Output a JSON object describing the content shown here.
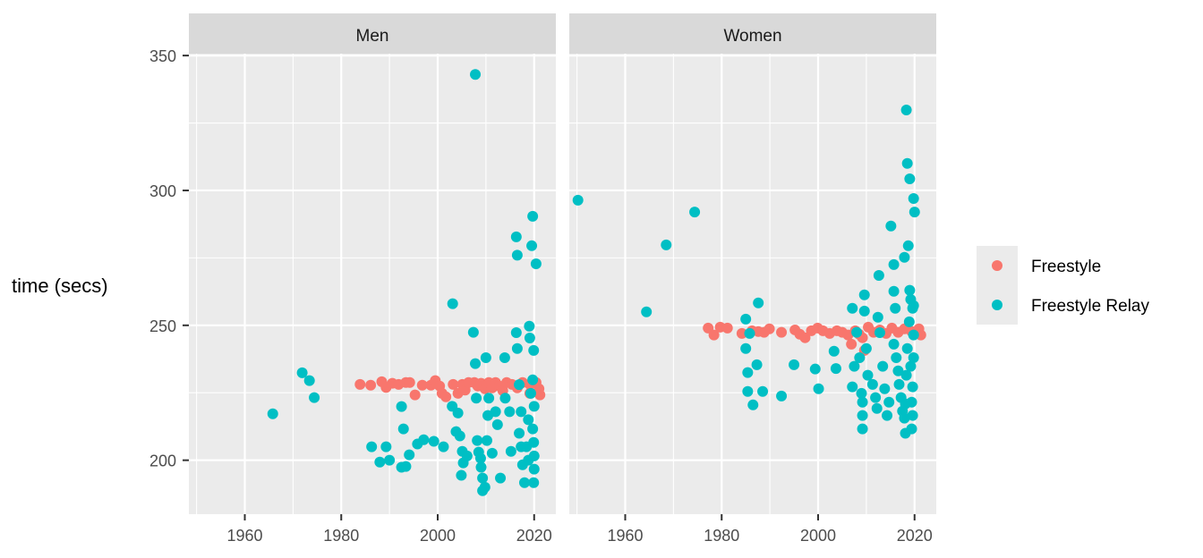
{
  "chart_data": {
    "type": "scatter",
    "title": "",
    "xlabel": "",
    "ylabel": "time (secs)",
    "xlim": [
      1948.4,
      2024.5
    ],
    "ylim": [
      180,
      350.7
    ],
    "x_ticks": [
      1960,
      1980,
      2000,
      2020
    ],
    "y_ticks": [
      200,
      250,
      300,
      350
    ],
    "grid": true,
    "legend_placement": "right",
    "colors": {
      "Freestyle": "#F8766D",
      "Freestyle Relay": "#00BFC4",
      "panel_bg": "#EBEBEB",
      "strip_bg": "#D9D9D9"
    },
    "legend": [
      {
        "label": "Freestyle",
        "color": "#F8766D"
      },
      {
        "label": "Freestyle Relay",
        "color": "#00BFC4"
      }
    ],
    "facets": [
      {
        "label": "Men",
        "series": [
          {
            "name": "Freestyle",
            "points": [
              [
                1983.9,
                228.1
              ],
              [
                1986.1,
                227.8
              ],
              [
                1988.4,
                229.1
              ],
              [
                1989.3,
                227
              ],
              [
                1990.6,
                228.5
              ],
              [
                1991.9,
                228.1
              ],
              [
                1993.4,
                228.8
              ],
              [
                1994.2,
                228.8
              ],
              [
                1995.3,
                224.2
              ],
              [
                1996.8,
                227.8
              ],
              [
                1998.6,
                227.8
              ],
              [
                1999.5,
                229.5
              ],
              [
                2000.4,
                227.5
              ],
              [
                2000.9,
                224.8
              ],
              [
                2001.7,
                223.5
              ],
              [
                2003.2,
                228.1
              ],
              [
                2004.2,
                224.8
              ],
              [
                2005.1,
                228.1
              ],
              [
                2005.7,
                226
              ],
              [
                2006.4,
                228.8
              ],
              [
                2007.6,
                228.8
              ],
              [
                2008.3,
                227.5
              ],
              [
                2009,
                228.5
              ],
              [
                2009.8,
                226.5
              ],
              [
                2010.6,
                228.8
              ],
              [
                2011.3,
                226.8
              ],
              [
                2012,
                228.8
              ],
              [
                2012.8,
                227.5
              ],
              [
                2013.5,
                225.8
              ],
              [
                2014.3,
                228.8
              ],
              [
                2015.4,
                228.1
              ],
              [
                2016.5,
                226.8
              ],
              [
                2017.6,
                228.8
              ],
              [
                2019.1,
                228.1
              ],
              [
                2020.4,
                228.8
              ],
              [
                2021,
                226.5
              ],
              [
                2021.2,
                224.2
              ],
              [
                2019.1,
                224.8
              ]
            ]
          },
          {
            "name": "Freestyle Relay",
            "points": [
              [
                1965.8,
                217.2
              ],
              [
                1971.9,
                232.4
              ],
              [
                1973.4,
                229.5
              ],
              [
                1974.4,
                223.2
              ],
              [
                1986.3,
                205
              ],
              [
                1989.3,
                205
              ],
              [
                1988,
                199.3
              ],
              [
                1990,
                200
              ],
              [
                1992.5,
                219.9
              ],
              [
                1992.9,
                211.6
              ],
              [
                1992.5,
                197.4
              ],
              [
                1993.4,
                197.7
              ],
              [
                1994.1,
                202
              ],
              [
                1995.8,
                206
              ],
              [
                1997.1,
                207.6
              ],
              [
                1999.2,
                207
              ],
              [
                2001.2,
                205
              ],
              [
                2003.1,
                258
              ],
              [
                2003,
                220
              ],
              [
                2004.2,
                217.5
              ],
              [
                2003.8,
                210.6
              ],
              [
                2004.6,
                209
              ],
              [
                2005.1,
                203.3
              ],
              [
                2005.3,
                199
              ],
              [
                2004.9,
                194.4
              ],
              [
                2006.1,
                201.6
              ],
              [
                2007.4,
                247.4
              ],
              [
                2007.8,
                235.8
              ],
              [
                2007.8,
                343
              ],
              [
                2008,
                223
              ],
              [
                2008.2,
                207.3
              ],
              [
                2008.5,
                203
              ],
              [
                2008.9,
                200.7
              ],
              [
                2009,
                197.4
              ],
              [
                2009.3,
                193.4
              ],
              [
                2009.3,
                188.7
              ],
              [
                2009.8,
                190
              ],
              [
                2010,
                238
              ],
              [
                2010.2,
                207.3
              ],
              [
                2010.6,
                223
              ],
              [
                2010.4,
                216.6
              ],
              [
                2011.3,
                202.6
              ],
              [
                2012,
                218
              ],
              [
                2012.4,
                213.2
              ],
              [
                2013,
                193.4
              ],
              [
                2013.9,
                238
              ],
              [
                2014,
                223
              ],
              [
                2014.9,
                218
              ],
              [
                2015.2,
                203.3
              ],
              [
                2016.3,
                282.8
              ],
              [
                2016.5,
                276
              ],
              [
                2016.3,
                247.3
              ],
              [
                2016.5,
                241.4
              ],
              [
                2016.9,
                228
              ],
              [
                2017.3,
                218
              ],
              [
                2016.9,
                210
              ],
              [
                2017.3,
                205
              ],
              [
                2017.6,
                198.3
              ],
              [
                2018,
                191.7
              ],
              [
                2019,
                249.7
              ],
              [
                2019.1,
                245.3
              ],
              [
                2019.5,
                279.5
              ],
              [
                2019.7,
                290.4
              ],
              [
                2020.4,
                272.8
              ],
              [
                2019.9,
                240.7
              ],
              [
                2019.7,
                229.8
              ],
              [
                2020,
                220
              ],
              [
                2019.7,
                211.6
              ],
              [
                2019.9,
                206.6
              ],
              [
                2020,
                201.6
              ],
              [
                2020,
                196.7
              ],
              [
                2019.9,
                191.7
              ],
              [
                2018.8,
                215
              ],
              [
                2018.4,
                205
              ],
              [
                2018.8,
                200
              ],
              [
                2019.3,
                224.8
              ]
            ]
          }
        ]
      },
      {
        "label": "Women",
        "series": [
          {
            "name": "Freestyle",
            "points": [
              [
                1977.2,
                249
              ],
              [
                1978.4,
                246.4
              ],
              [
                1979.7,
                249.3
              ],
              [
                1981.2,
                249
              ],
              [
                1984.2,
                247
              ],
              [
                1986.3,
                248
              ],
              [
                1987.6,
                247.7
              ],
              [
                1988.8,
                247.4
              ],
              [
                1989.9,
                248.7
              ],
              [
                1992.4,
                247.4
              ],
              [
                1995.2,
                248.3
              ],
              [
                1996.2,
                246.7
              ],
              [
                1997.3,
                245.4
              ],
              [
                1998.6,
                248
              ],
              [
                1999.9,
                249
              ],
              [
                2001,
                248
              ],
              [
                2002.4,
                247
              ],
              [
                2003.9,
                248
              ],
              [
                2005,
                247.4
              ],
              [
                2006.2,
                246.4
              ],
              [
                2006.9,
                243
              ],
              [
                2007.7,
                248
              ],
              [
                2008.5,
                246.7
              ],
              [
                2009.2,
                245.4
              ],
              [
                2009.6,
                240.7
              ],
              [
                2010.4,
                249.3
              ],
              [
                2011.5,
                247.4
              ],
              [
                2012.8,
                248.3
              ],
              [
                2014.1,
                247
              ],
              [
                2015.3,
                249
              ],
              [
                2016.6,
                247.4
              ],
              [
                2017.9,
                248.7
              ],
              [
                2019.4,
                247.7
              ],
              [
                2020.9,
                248.7
              ],
              [
                2021.3,
                246.4
              ]
            ]
          },
          {
            "name": "Freestyle Relay",
            "points": [
              [
                1950.2,
                296.4
              ],
              [
                1964.4,
                255
              ],
              [
                1968.5,
                279.8
              ],
              [
                1974.4,
                292
              ],
              [
                1985,
                252.3
              ],
              [
                1985.8,
                247
              ],
              [
                1985,
                241.4
              ],
              [
                1985.4,
                232.5
              ],
              [
                1985.4,
                225.5
              ],
              [
                1986.5,
                220.5
              ],
              [
                1987.6,
                258.3
              ],
              [
                1987.3,
                235.4
              ],
              [
                1988.5,
                225.5
              ],
              [
                1992.4,
                223.8
              ],
              [
                1995,
                235.4
              ],
              [
                1999.4,
                233.8
              ],
              [
                2000.1,
                226.5
              ],
              [
                2003.7,
                234
              ],
              [
                2003.3,
                240.4
              ],
              [
                2007.1,
                256.3
              ],
              [
                2007.1,
                227.2
              ],
              [
                2007.5,
                234.8
              ],
              [
                2008,
                247.4
              ],
              [
                2008.6,
                238
              ],
              [
                2009,
                224.8
              ],
              [
                2009.2,
                221.5
              ],
              [
                2009.2,
                216.6
              ],
              [
                2009.2,
                211.6
              ],
              [
                2009.6,
                261.3
              ],
              [
                2009.6,
                255.3
              ],
              [
                2010,
                241.4
              ],
              [
                2010.3,
                231.5
              ],
              [
                2011.3,
                228.1
              ],
              [
                2011.9,
                223.2
              ],
              [
                2012.2,
                219.2
              ],
              [
                2012.6,
                268.5
              ],
              [
                2012.4,
                253
              ],
              [
                2012.8,
                247.3
              ],
              [
                2013.4,
                234.8
              ],
              [
                2013.8,
                226.5
              ],
              [
                2014.3,
                216.6
              ],
              [
                2014.7,
                221.5
              ],
              [
                2015.1,
                286.8
              ],
              [
                2015.7,
                272.5
              ],
              [
                2015.7,
                262.6
              ],
              [
                2016,
                256.3
              ],
              [
                2015.7,
                243
              ],
              [
                2016.2,
                238
              ],
              [
                2016.6,
                233.1
              ],
              [
                2016.8,
                228.1
              ],
              [
                2017.2,
                223.2
              ],
              [
                2017.5,
                218.2
              ],
              [
                2017.9,
                275.2
              ],
              [
                2018.3,
                329.8
              ],
              [
                2018.5,
                310
              ],
              [
                2018.7,
                279.5
              ],
              [
                2019,
                304.3
              ],
              [
                2018.9,
                251.3
              ],
              [
                2018.5,
                241.4
              ],
              [
                2018.3,
                231.5
              ],
              [
                2018.1,
                220.9
              ],
              [
                2017.9,
                215.6
              ],
              [
                2018.1,
                210
              ],
              [
                2019,
                263
              ],
              [
                2019.2,
                259.6
              ],
              [
                2019.8,
                297
              ],
              [
                2020,
                292
              ],
              [
                2019.6,
                256.3
              ],
              [
                2019.8,
                246.4
              ],
              [
                2019.8,
                238
              ],
              [
                2019.6,
                227.2
              ],
              [
                2019.4,
                221.5
              ],
              [
                2019.6,
                216.6
              ],
              [
                2019.4,
                211.6
              ],
              [
                2019.8,
                257.3
              ],
              [
                2019.2,
                234.8
              ]
            ]
          }
        ]
      }
    ]
  }
}
